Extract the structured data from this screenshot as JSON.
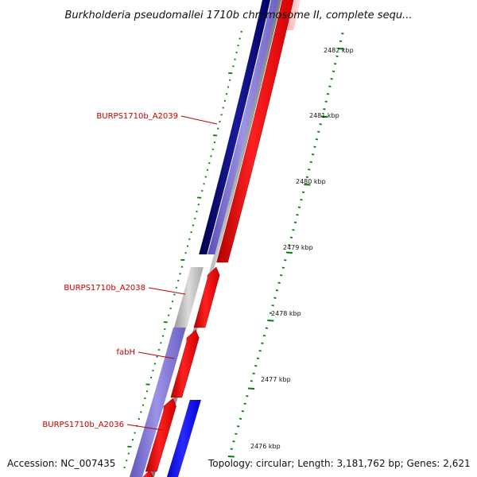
{
  "title": "Burkholderia pseudomallei 1710b chromosome II, complete sequ...",
  "footer": {
    "accession": "Accession: NC_007435",
    "info": "Topology: circular; Length: 3,181,762 bp; Genes: 2,621"
  },
  "ruler_labels": [
    "2482 kbp",
    "2481 kbp",
    "2480 kbp",
    "2479 kbp",
    "2478 kbp",
    "2477 kbp",
    "2476 kbp"
  ],
  "gene_labels": [
    "BURPS1710b_A2039",
    "BURPS1710b_A2038",
    "fabH",
    "BURPS1710b_A2036"
  ],
  "colors": {
    "forward_gene": "#ee0000",
    "reverse_gene_dark": "#0a0a80",
    "reverse_gene_light": "#7b6fcf",
    "blue_gene": "#0000ee",
    "gray_gene": "#b8b8b8",
    "backbone": "#888888",
    "ticks": "#008000",
    "label_red": "#c00000"
  }
}
